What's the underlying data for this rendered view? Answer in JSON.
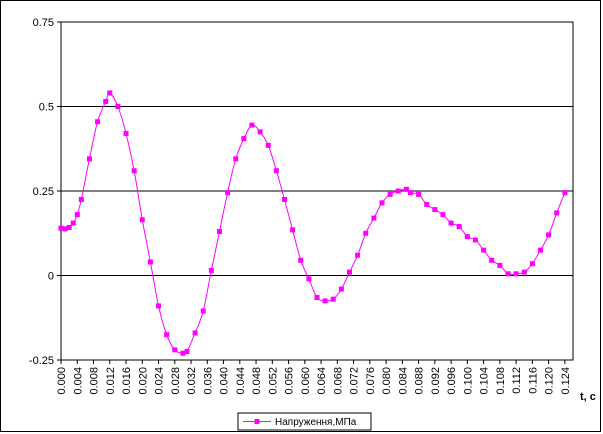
{
  "chart_data": {
    "type": "line",
    "xlabel": "t, c",
    "ylim": [
      -0.25,
      0.75
    ],
    "yticks": [
      "0.75",
      "0.5",
      "0.25",
      "0",
      "-0.25"
    ],
    "ytick_values": [
      0.75,
      0.5,
      0.25,
      0,
      -0.25
    ],
    "xticks": [
      "0.000",
      "0.004",
      "0.008",
      "0.012",
      "0.016",
      "0.020",
      "0.024",
      "0.028",
      "0.032",
      "0.036",
      "0.040",
      "0.044",
      "0.048",
      "0.052",
      "0.056",
      "0.060",
      "0.064",
      "0.068",
      "0.072",
      "0.076",
      "0.080",
      "0.084",
      "0.088",
      "0.092",
      "0.096",
      "0.100",
      "0.104",
      "0.108",
      "0.112",
      "0.116",
      "0.120",
      "0.124"
    ],
    "xlim": [
      0,
      0.126
    ],
    "grid": "horizontal",
    "legend": "bottom",
    "series": [
      {
        "name": "Напруження,МПа",
        "color": "#ff00ff",
        "x": [
          0.0,
          0.001,
          0.002,
          0.003,
          0.004,
          0.005,
          0.007,
          0.009,
          0.011,
          0.012,
          0.014,
          0.016,
          0.018,
          0.02,
          0.022,
          0.024,
          0.026,
          0.028,
          0.03,
          0.031,
          0.033,
          0.035,
          0.037,
          0.039,
          0.041,
          0.043,
          0.045,
          0.047,
          0.049,
          0.051,
          0.053,
          0.055,
          0.057,
          0.059,
          0.061,
          0.063,
          0.065,
          0.067,
          0.069,
          0.071,
          0.073,
          0.075,
          0.077,
          0.079,
          0.081,
          0.083,
          0.085,
          0.086,
          0.088,
          0.09,
          0.092,
          0.094,
          0.096,
          0.098,
          0.1,
          0.102,
          0.104,
          0.106,
          0.108,
          0.11,
          0.112,
          0.114,
          0.116,
          0.118,
          0.12,
          0.122,
          0.124
        ],
        "y": [
          0.14,
          0.138,
          0.142,
          0.155,
          0.18,
          0.225,
          0.345,
          0.455,
          0.515,
          0.54,
          0.5,
          0.42,
          0.31,
          0.165,
          0.04,
          -0.09,
          -0.175,
          -0.22,
          -0.23,
          -0.225,
          -0.17,
          -0.105,
          0.015,
          0.13,
          0.245,
          0.345,
          0.405,
          0.445,
          0.425,
          0.385,
          0.31,
          0.225,
          0.135,
          0.045,
          -0.01,
          -0.065,
          -0.075,
          -0.07,
          -0.04,
          0.01,
          0.06,
          0.125,
          0.17,
          0.215,
          0.24,
          0.25,
          0.255,
          0.245,
          0.24,
          0.21,
          0.195,
          0.18,
          0.155,
          0.145,
          0.115,
          0.105,
          0.075,
          0.045,
          0.03,
          0.005,
          0.005,
          0.01,
          0.035,
          0.075,
          0.12,
          0.185,
          0.245
        ]
      }
    ]
  }
}
